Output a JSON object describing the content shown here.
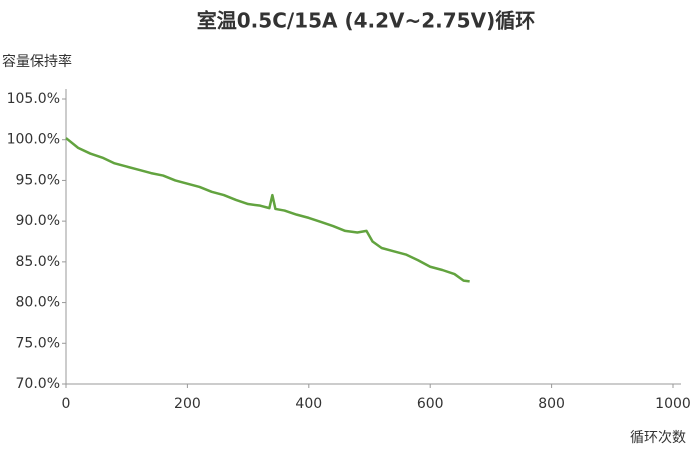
{
  "chart_data": {
    "type": "line",
    "title": "室温0.5C/15A (4.2V~2.75V)循环",
    "y_label": "容量保持率",
    "x_label": "循环次数",
    "x": [
      0,
      20,
      40,
      60,
      80,
      100,
      120,
      140,
      160,
      180,
      200,
      220,
      240,
      260,
      280,
      300,
      320,
      335,
      340,
      345,
      360,
      380,
      400,
      420,
      440,
      460,
      480,
      495,
      505,
      520,
      540,
      560,
      580,
      600,
      620,
      640,
      655,
      665
    ],
    "series": [
      {
        "name": "容量保持率",
        "color": "#62a33f",
        "values": [
          100.2,
          99.0,
          98.3,
          97.8,
          97.1,
          96.7,
          96.3,
          95.9,
          95.6,
          95.0,
          94.6,
          94.2,
          93.6,
          93.2,
          92.6,
          92.1,
          91.9,
          91.6,
          93.2,
          91.5,
          91.3,
          90.8,
          90.4,
          89.9,
          89.4,
          88.8,
          88.6,
          88.8,
          87.5,
          86.7,
          86.3,
          85.9,
          85.2,
          84.4,
          84.0,
          83.5,
          82.7,
          82.6
        ]
      }
    ],
    "xlim": [
      0,
      1000
    ],
    "xticks": [
      0,
      200,
      400,
      600,
      800,
      1000
    ],
    "ylim": [
      70,
      105
    ],
    "yticks": [
      {
        "value": 70,
        "label": "70.0%"
      },
      {
        "value": 75,
        "label": "75.0%"
      },
      {
        "value": 80,
        "label": "80.0%"
      },
      {
        "value": 85,
        "label": "85.0%"
      },
      {
        "value": 90,
        "label": "90.0%"
      },
      {
        "value": 95,
        "label": "95.0%"
      },
      {
        "value": 100,
        "label": "100.0%"
      },
      {
        "value": 105,
        "label": "105.0%"
      }
    ],
    "grid": false
  }
}
